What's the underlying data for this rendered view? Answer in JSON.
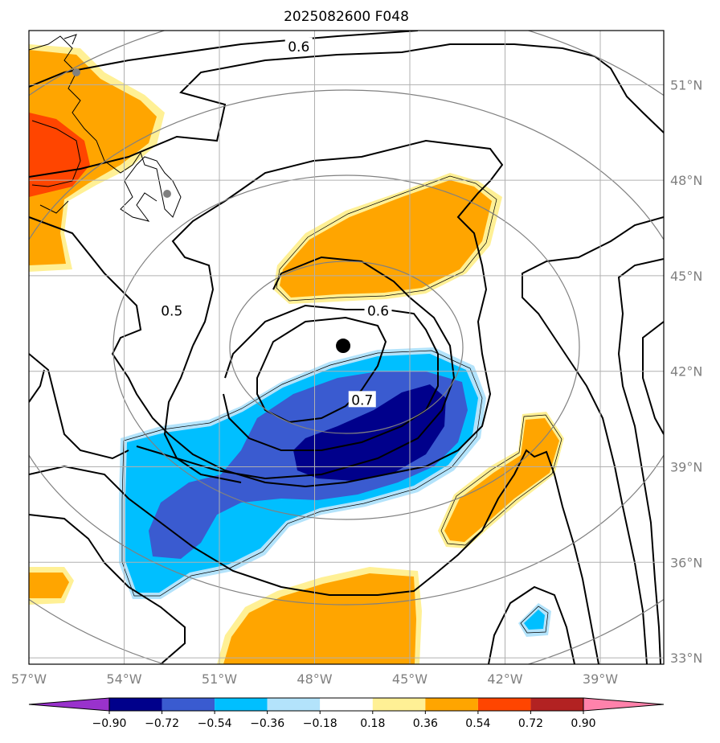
{
  "chart_data": {
    "type": "contour",
    "title": "2025082600 F048",
    "xlabel": "",
    "ylabel": "",
    "x_ticks": [
      "57°W",
      "54°W",
      "51°W",
      "48°W",
      "45°W",
      "42°W",
      "39°W"
    ],
    "x_tick_values": [
      -57,
      -54,
      -51,
      -48,
      -45,
      -42,
      -39
    ],
    "y_ticks": [
      "33°N",
      "36°N",
      "39°N",
      "42°N",
      "45°N",
      "48°N",
      "51°N"
    ],
    "y_tick_values": [
      33,
      36,
      39,
      42,
      45,
      48,
      51
    ],
    "xlim": [
      -57,
      -37
    ],
    "ylim": [
      32.8,
      52.7
    ],
    "grid": true,
    "center_marker": {
      "lon": -47.1,
      "lat": 42.8
    },
    "contour_labels": [
      {
        "text": "0.6",
        "lon": -48.5,
        "lat": 52.2
      },
      {
        "text": "0.5",
        "lon": -52.5,
        "lat": 43.9
      },
      {
        "text": "0.6",
        "lon": -46.0,
        "lat": 43.9
      },
      {
        "text": "0.7",
        "lon": -46.5,
        "lat": 41.1
      }
    ],
    "colorbar": {
      "levels": [
        "−0.90",
        "−0.72",
        "−0.54",
        "−0.36",
        "−0.18",
        "0.18",
        "0.36",
        "0.54",
        "0.72",
        "0.90"
      ],
      "colors": [
        "#9932cc",
        "#00008b",
        "#3a5bd0",
        "#00bfff",
        "#b3e3fb",
        "#ffffff",
        "#fff095",
        "#ffa500",
        "#ff4500",
        "#b22222",
        "#ff82ab"
      ],
      "extend": "both"
    }
  }
}
